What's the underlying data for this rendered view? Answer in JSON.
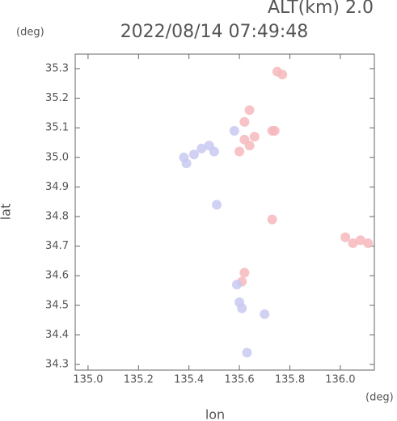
{
  "chart_data": {
    "type": "scatter",
    "title": "2022/08/14 07:49:48",
    "subtitle": "ALT(km) 2.0",
    "y_unit": "(deg)",
    "x_unit": "(deg)",
    "x_label": "lon",
    "y_label": "lat",
    "xlim": [
      134.949,
      136.135
    ],
    "ylim": [
      34.281,
      35.349
    ],
    "xticks": [
      {
        "value": 135,
        "label": "135.0"
      },
      135.2,
      135.4,
      135.6,
      135.8,
      {
        "value": 136,
        "label": "136.0"
      }
    ],
    "yticks": [
      34.3,
      34.4,
      34.5,
      34.6,
      34.7,
      34.8,
      34.9,
      {
        "value": 35,
        "label": "35.0"
      },
      35.1,
      35.2,
      35.3
    ],
    "series": [
      {
        "color": "#f6b8bc",
        "x": [
          135.75,
          135.77,
          135.62,
          135.64,
          135.6,
          135.66,
          135.62,
          135.64,
          135.73,
          135.74,
          135.73,
          136.02,
          136.05,
          136.08,
          136.11,
          135.61,
          135.62
        ],
        "values": [
          35.29,
          35.28,
          35.06,
          35.04,
          35.02,
          35.07,
          35.12,
          35.16,
          35.09,
          35.09,
          34.79,
          34.73,
          34.71,
          34.72,
          34.71,
          34.58,
          34.61
        ]
      },
      {
        "color": "#c9c9f2",
        "x": [
          135.39,
          135.42,
          135.45,
          135.48,
          135.5,
          135.38,
          135.51,
          135.6,
          135.61,
          135.59,
          135.7,
          135.63,
          135.58
        ],
        "values": [
          34.98,
          35.01,
          35.03,
          35.04,
          35.02,
          35.0,
          34.84,
          34.51,
          34.49,
          34.57,
          34.47,
          34.34,
          35.09
        ]
      }
    ]
  }
}
